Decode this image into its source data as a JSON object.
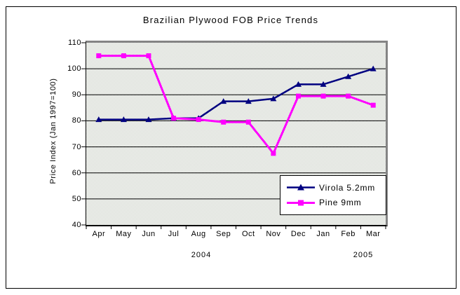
{
  "chart_data": {
    "type": "line",
    "title": "Brazilian Plywood FOB Price Trends",
    "ylabel": "Price Index (Jan 1997=100)",
    "xlabel": "",
    "categories": [
      "Apr",
      "May",
      "Jun",
      "Jul",
      "Aug",
      "Sep",
      "Oct",
      "Nov",
      "Dec",
      "Jan",
      "Feb",
      "Mar"
    ],
    "year_labels": [
      {
        "text": "2004"
      },
      {
        "text": "2005"
      }
    ],
    "ylim": [
      40,
      110
    ],
    "y_ticks": [
      110,
      100,
      90,
      80,
      70,
      60,
      50,
      40
    ],
    "grid": true,
    "legend_position": "overlay-bottom-right",
    "plot_bg_color": "#dadeD6",
    "plot_border_color": "#848484",
    "gridline_color": "#000000",
    "series": [
      {
        "name": "Virola 5.2mm",
        "color": "#000080",
        "marker": "triangle",
        "values": [
          80.5,
          80.5,
          80.5,
          81,
          81,
          87.5,
          87.5,
          88.5,
          94,
          94,
          97,
          100
        ]
      },
      {
        "name": "Pine 9mm",
        "color": "#FF00FF",
        "marker": "square",
        "values": [
          105,
          105,
          105,
          81,
          80.5,
          79.5,
          79.5,
          67.5,
          89.5,
          89.5,
          89.5,
          86
        ]
      }
    ]
  }
}
